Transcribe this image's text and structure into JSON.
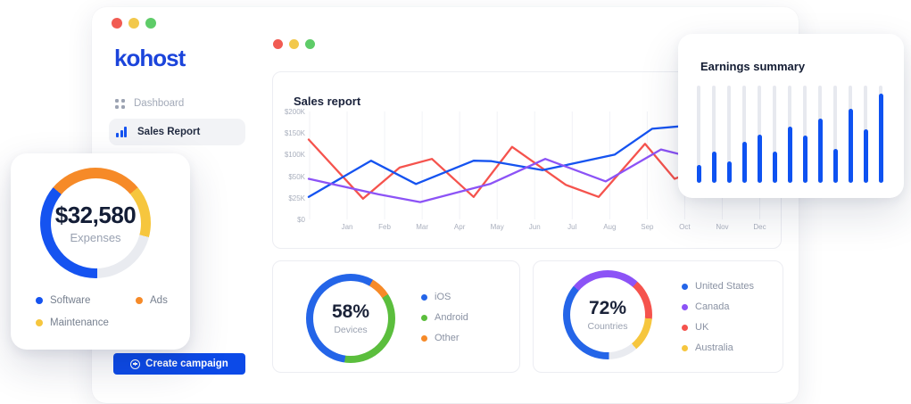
{
  "colors": {
    "logo_blue": "#1B44DB",
    "btn_blue": "#0C4AE8",
    "chart_blue": "#1553F0",
    "bar_blue": "#0E52F1",
    "ring_blue": "#2465E8",
    "red": "#F5534D",
    "purple": "#8C53F6",
    "green": "#5BBE3D",
    "orange": "#F68A28",
    "amber": "#F6C63E",
    "track_gray": "#E9EBF0",
    "traffic_red": "#F15B52",
    "traffic_yellow": "#F2C84B",
    "traffic_green": "#5ECC68"
  },
  "sidebar": {
    "logo": "kohost",
    "items": [
      {
        "label": "Dashboard",
        "active": false
      },
      {
        "label": "Sales Report",
        "active": true
      }
    ],
    "create_button_label": "Create campaign"
  },
  "chart_data": [
    {
      "id": "sales",
      "type": "line",
      "title": "Sales report",
      "x_tick_labels": [
        "Jan",
        "Feb",
        "Mar",
        "Apr",
        "May",
        "Jun",
        "Jul",
        "Aug",
        "Sep",
        "Oct",
        "Nov",
        "Dec"
      ],
      "y_tick_labels": [
        "$200K",
        "$150K",
        "$100K",
        "$50K",
        "$25K",
        "$0"
      ],
      "y_scale_stops": {
        "values_k": [
          0,
          25,
          50,
          100,
          150,
          200
        ],
        "fractions_from_bottom": [
          0,
          0.2,
          0.4,
          0.6,
          0.8,
          1.0
        ]
      },
      "grid": "vertical-only",
      "legend_position": "none",
      "series": [
        {
          "name": "red-series",
          "color": "#F5534D",
          "points_xfrac_valueK": [
            [
              0,
              135
            ],
            [
              0.116,
              24
            ],
            [
              0.194,
              70
            ],
            [
              0.263,
              90
            ],
            [
              0.352,
              26
            ],
            [
              0.434,
              118
            ],
            [
              0.549,
              40
            ],
            [
              0.619,
              26
            ],
            [
              0.718,
              125
            ],
            [
              0.781,
              47
            ],
            [
              0.85,
              72
            ]
          ]
        },
        {
          "name": "blue-series",
          "color": "#1553F0",
          "points_xfrac_valueK": [
            [
              0,
              26
            ],
            [
              0.133,
              86
            ],
            [
              0.229,
              41
            ],
            [
              0.352,
              86
            ],
            [
              0.39,
              85
            ],
            [
              0.499,
              64
            ],
            [
              0.653,
              100
            ],
            [
              0.733,
              160
            ],
            [
              0.796,
              166
            ],
            [
              0.85,
              170
            ]
          ]
        },
        {
          "name": "purple-series",
          "color": "#8C53F6",
          "points_xfrac_valueK": [
            [
              0,
              47
            ],
            [
              0.149,
              29
            ],
            [
              0.238,
              20
            ],
            [
              0.387,
              41
            ],
            [
              0.505,
              90
            ],
            [
              0.634,
              44
            ],
            [
              0.752,
              112
            ],
            [
              0.796,
              100
            ],
            [
              0.85,
              106
            ]
          ]
        }
      ]
    },
    {
      "id": "earnings",
      "type": "bar",
      "title": "Earnings summary",
      "bar_fill_percent": [
        18,
        32,
        22,
        42,
        50,
        32,
        58,
        49,
        66,
        35,
        76,
        55,
        92
      ],
      "bar_color": "#0E52F1",
      "track_color": "#E7E9EF"
    },
    {
      "id": "expenses",
      "type": "donut",
      "center_value": "$32,580",
      "center_label": "Expenses",
      "segments_deg": [
        {
          "label": "Ads",
          "color": "#F68A28",
          "start": 0,
          "end": 50
        },
        {
          "label": "Maintenance",
          "color": "#F6C63E",
          "start": 50,
          "end": 105
        },
        {
          "label": "other",
          "color": "#E9EBF0",
          "start": 105,
          "end": 178
        },
        {
          "label": "Software",
          "color": "#1553F0",
          "start": 178,
          "end": 310
        },
        {
          "label": "Ads",
          "color": "#F68A28",
          "start": 310,
          "end": 360
        }
      ],
      "legend": [
        {
          "label": "Software",
          "color": "#1553F0"
        },
        {
          "label": "Ads",
          "color": "#F68A28"
        },
        {
          "label": "Maintenance",
          "color": "#F6C63E"
        }
      ]
    },
    {
      "id": "devices",
      "type": "donut",
      "center_value": "58%",
      "center_label": "Devices",
      "segments_deg": [
        {
          "label": "iOS",
          "color": "#2465E8",
          "start": 0,
          "end": 30
        },
        {
          "label": "Other",
          "color": "#F68A28",
          "start": 30,
          "end": 57
        },
        {
          "label": "Android",
          "color": "#5BBE3D",
          "start": 57,
          "end": 188
        },
        {
          "label": "iOS",
          "color": "#2465E8",
          "start": 188,
          "end": 360
        }
      ],
      "legend": [
        {
          "label": "iOS",
          "color": "#2465E8"
        },
        {
          "label": "Android",
          "color": "#5BBE3D"
        },
        {
          "label": "Other",
          "color": "#F68A28"
        }
      ]
    },
    {
      "id": "countries",
      "type": "donut",
      "center_value": "72%",
      "center_label": "Countries",
      "segments_deg": [
        {
          "label": "Canada",
          "color": "#8C53F6",
          "start": 0,
          "end": 42
        },
        {
          "label": "UK",
          "color": "#F5534D",
          "start": 42,
          "end": 95
        },
        {
          "label": "Australia",
          "color": "#F6C63E",
          "start": 95,
          "end": 140
        },
        {
          "label": "other",
          "color": "#E9EBF0",
          "start": 140,
          "end": 178
        },
        {
          "label": "United States",
          "color": "#2465E8",
          "start": 178,
          "end": 310
        },
        {
          "label": "Canada",
          "color": "#8C53F6",
          "start": 310,
          "end": 360
        }
      ],
      "legend": [
        {
          "label": "United States",
          "color": "#2465E8"
        },
        {
          "label": "Canada",
          "color": "#8C53F6"
        },
        {
          "label": "UK",
          "color": "#F5534D"
        },
        {
          "label": "Australia",
          "color": "#F6C63E"
        }
      ]
    }
  ]
}
